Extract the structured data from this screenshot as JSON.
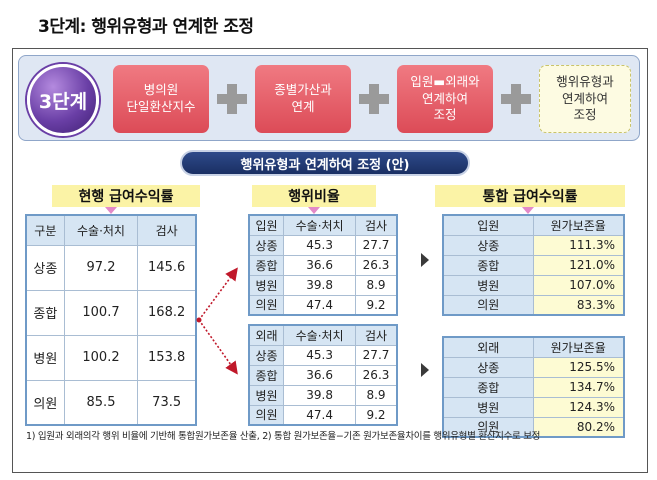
{
  "title": "3단계: 행위유형과 연계한 조정",
  "banner": {
    "step": "3단계",
    "box1": "병의원\n단일환산지수",
    "box2": "종별가산과\n연계",
    "box3": "입원▬외래와\n연계하여\n조정",
    "box4": "행위유형과\n연계하여\n조정"
  },
  "pill": "행위유형과 연계하여 조정 (안)",
  "labels": {
    "current": "현행 급여수익률",
    "ratio": "행위비율",
    "integrated": "통합 급여수익률"
  },
  "current_table": {
    "headers": [
      "구분",
      "수술·처치",
      "검사"
    ],
    "rows": [
      [
        "상종",
        "97.2",
        "145.6"
      ],
      [
        "종합",
        "100.7",
        "168.2"
      ],
      [
        "병원",
        "100.2",
        "153.8"
      ],
      [
        "의원",
        "85.5",
        "73.5"
      ]
    ]
  },
  "inpatient_ratio": {
    "headers": [
      "입원",
      "수술·처치",
      "검사"
    ],
    "rows": [
      [
        "상종",
        "45.3",
        "27.7"
      ],
      [
        "종합",
        "36.6",
        "26.3"
      ],
      [
        "병원",
        "39.8",
        "8.9"
      ],
      [
        "의원",
        "47.4",
        "9.2"
      ]
    ]
  },
  "outpatient_ratio": {
    "headers": [
      "외래",
      "수술·처치",
      "검사"
    ],
    "rows": [
      [
        "상종",
        "45.3",
        "27.7"
      ],
      [
        "종합",
        "36.6",
        "26.3"
      ],
      [
        "병원",
        "39.8",
        "8.9"
      ],
      [
        "의원",
        "47.4",
        "9.2"
      ]
    ]
  },
  "inpatient_result": {
    "headers": [
      "입원",
      "원가보존율"
    ],
    "rows": [
      [
        "상종",
        "111.3%"
      ],
      [
        "종합",
        "121.0%"
      ],
      [
        "병원",
        "107.0%"
      ],
      [
        "의원",
        "83.3%"
      ]
    ]
  },
  "outpatient_result": {
    "headers": [
      "외래",
      "원가보존율"
    ],
    "rows": [
      [
        "상종",
        "125.5%"
      ],
      [
        "종합",
        "134.7%"
      ],
      [
        "병원",
        "124.3%"
      ],
      [
        "의원",
        "80.2%"
      ]
    ]
  },
  "footnote": "1) 입원과 외래의각 행위 비율에 기반해 통합원가보존율 산출, 2) 통합 원가보존율−기존 원가보존율차이를 행위유형별 환산지수로 보정",
  "colors": {
    "step_pink": "#dc4b57",
    "header_blue": "#d6e5f3",
    "result_cream": "#fdfbd3",
    "pill_navy": "#1a2f63",
    "highlight_yellow": "#fbf3a6"
  }
}
